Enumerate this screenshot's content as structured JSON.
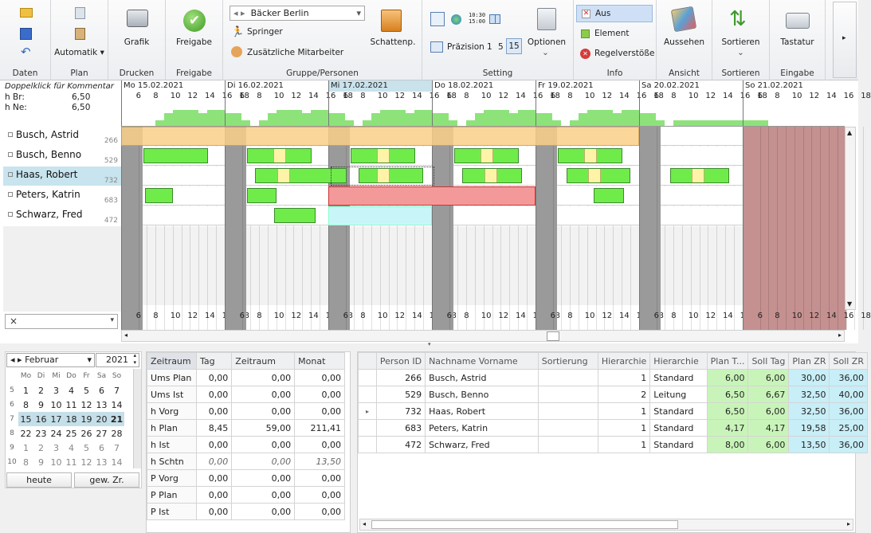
{
  "ribbon": {
    "groups": [
      "Daten",
      "Plan",
      "Drucken",
      "Freigabe",
      "Gruppe/Personen",
      "Setting",
      "Info",
      "Ansicht",
      "Sortieren",
      "Eingabe"
    ],
    "automatik": "Automatik",
    "grafik": "Grafik",
    "freigabe": "Freigabe",
    "group_select": "Bäcker Berlin",
    "springer": "Springer",
    "zusaetzliche": "Zusätzliche Mitarbeiter",
    "schattenp": "Schattenp.",
    "praezision": "Präzision",
    "prec_values": [
      "1",
      "5",
      "15"
    ],
    "optionen": "Optionen",
    "clock_text": "10:30\n15:00",
    "info_items": [
      "Aus",
      "Element",
      "Regelverstöße"
    ],
    "aussehen": "Aussehen",
    "sortieren": "Sortieren",
    "tastatur": "Tastatur"
  },
  "planner": {
    "comment_hint": "Doppelklick für Kommentar",
    "h_br_label": "h Br:",
    "h_br": "6,50",
    "h_ne_label": "h Ne:",
    "h_ne": "6,50",
    "days": [
      "Mo 15.02.2021",
      "Di 16.02.2021",
      "Mi 17.02.2021",
      "Do 18.02.2021",
      "Fr 19.02.2021",
      "Sa 20.02.2021",
      "So 21.02.2021"
    ],
    "hour_ticks": [
      "6",
      "8",
      "10",
      "12",
      "14",
      "16",
      "18"
    ],
    "employees": [
      {
        "name": "Busch, Astrid",
        "id": "266"
      },
      {
        "name": "Busch, Benno",
        "id": "529"
      },
      {
        "name": "Haas, Robert",
        "id": "732"
      },
      {
        "name": "Peters, Katrin",
        "id": "683"
      },
      {
        "name": "Schwarz, Fred",
        "id": "472"
      }
    ],
    "filter_clear": "×"
  },
  "calendar": {
    "month": "Februar",
    "year": "2021",
    "weekdays": [
      "Mo",
      "Di",
      "Mi",
      "Do",
      "Fr",
      "Sa",
      "So"
    ],
    "weeks": [
      {
        "kw": "5",
        "days": [
          "1",
          "2",
          "3",
          "4",
          "5",
          "6",
          "7"
        ]
      },
      {
        "kw": "6",
        "days": [
          "8",
          "9",
          "10",
          "11",
          "12",
          "13",
          "14"
        ]
      },
      {
        "kw": "7",
        "days": [
          "15",
          "16",
          "17",
          "18",
          "19",
          "20",
          "21"
        ]
      },
      {
        "kw": "8",
        "days": [
          "22",
          "23",
          "24",
          "25",
          "26",
          "27",
          "28"
        ]
      },
      {
        "kw": "9",
        "days": [
          "1",
          "2",
          "3",
          "4",
          "5",
          "6",
          "7"
        ]
      },
      {
        "kw": "10",
        "days": [
          "8",
          "9",
          "10",
          "11",
          "12",
          "13",
          "14"
        ]
      }
    ],
    "today": "heute",
    "gew": "gew. Zr."
  },
  "summary": {
    "headers": [
      "Zeitraum",
      "Tag",
      "Zeitraum",
      "Monat"
    ],
    "rows": [
      [
        "Ums Plan",
        "0,00",
        "0,00",
        "0,00"
      ],
      [
        "Ums Ist",
        "0,00",
        "0,00",
        "0,00"
      ],
      [
        "h Vorg",
        "0,00",
        "0,00",
        "0,00"
      ],
      [
        "h Plan",
        "8,45",
        "59,00",
        "211,41"
      ],
      [
        "h Ist",
        "0,00",
        "0,00",
        "0,00"
      ],
      [
        "h Schtn",
        "0,00",
        "0,00",
        "13,50"
      ],
      [
        "P Vorg",
        "0,00",
        "0,00",
        "0,00"
      ],
      [
        "P Plan",
        "0,00",
        "0,00",
        "0,00"
      ],
      [
        "P Ist",
        "0,00",
        "0,00",
        "0,00"
      ]
    ]
  },
  "persons": {
    "headers": [
      "Person ID",
      "Nachname Vorname",
      "Sortierung",
      "Hierarchie",
      "Hierarchie",
      "Plan T...",
      "Soll Tag",
      "Plan ZR",
      "Soll ZR"
    ],
    "rows": [
      [
        "266",
        "Busch, Astrid",
        "",
        "1",
        "Standard",
        "6,00",
        "6,00",
        "30,00",
        "36,00"
      ],
      [
        "529",
        "Busch, Benno",
        "",
        "2",
        "Leitung",
        "6,50",
        "6,67",
        "32,50",
        "40,00"
      ],
      [
        "732",
        "Haas, Robert",
        "",
        "1",
        "Standard",
        "6,50",
        "6,00",
        "32,50",
        "36,00"
      ],
      [
        "683",
        "Peters, Katrin",
        "",
        "1",
        "Standard",
        "4,17",
        "4,17",
        "19,58",
        "25,00"
      ],
      [
        "472",
        "Schwarz, Fred",
        "",
        "1",
        "Standard",
        "8,00",
        "6,00",
        "13,50",
        "36,00"
      ]
    ]
  },
  "colors": {
    "shift": "#70ec4a",
    "break": "#fff3a8",
    "weekend": "#c49090",
    "closed": "#9a9a9a",
    "selected_row": "#c8e4ee",
    "orange": "#fbd089",
    "error": "#f49999",
    "cyan": "#c8f6f8"
  }
}
